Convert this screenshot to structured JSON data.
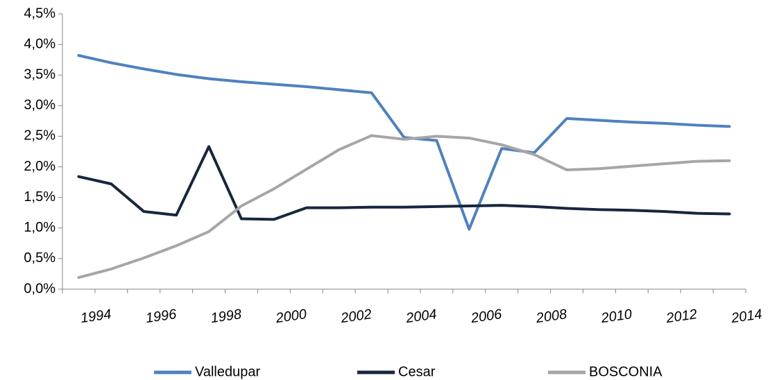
{
  "chart_data": {
    "type": "line",
    "categories": [
      "1994",
      null,
      "1996",
      null,
      "1998",
      null,
      "2000",
      null,
      "2002",
      null,
      "2004",
      null,
      "2006",
      null,
      "2008",
      null,
      "2010",
      null,
      "2012",
      null,
      "2014"
    ],
    "series": [
      {
        "name": "Valledupar",
        "color": "#4f81bd",
        "values": [
          3.82,
          3.7,
          3.6,
          3.51,
          3.44,
          3.39,
          3.35,
          3.31,
          3.26,
          3.21,
          2.48,
          2.43,
          0.98,
          2.3,
          2.23,
          2.79,
          2.76,
          2.73,
          2.71,
          2.68,
          2.66
        ]
      },
      {
        "name": "Cesar",
        "color": "#17263c",
        "values": [
          1.84,
          1.72,
          1.27,
          1.21,
          2.33,
          1.15,
          1.14,
          1.33,
          1.33,
          1.34,
          1.34,
          1.35,
          1.36,
          1.37,
          1.35,
          1.32,
          1.3,
          1.29,
          1.27,
          1.24,
          1.23
        ]
      },
      {
        "name": "BOSCONIA",
        "color": "#a6a6a6",
        "values": [
          0.19,
          0.33,
          0.51,
          0.71,
          0.94,
          1.36,
          1.64,
          1.96,
          2.28,
          2.51,
          2.45,
          2.5,
          2.47,
          2.36,
          2.2,
          1.95,
          1.97,
          2.01,
          2.05,
          2.09,
          2.1
        ]
      }
    ],
    "ylim": [
      0,
      4.5
    ],
    "yticks": [
      {
        "value": 0,
        "label": "0,0%"
      },
      {
        "value": 0.5,
        "label": "0,5%"
      },
      {
        "value": 1,
        "label": "1,0%"
      },
      {
        "value": 1.5,
        "label": "1,5%"
      },
      {
        "value": 2,
        "label": "2,0%"
      },
      {
        "value": 2.5,
        "label": "2,5%"
      },
      {
        "value": 3,
        "label": "3,0%"
      },
      {
        "value": 3.5,
        "label": "3,5%"
      },
      {
        "value": 4,
        "label": "4,0%"
      },
      {
        "value": 4.5,
        "label": "4,5%"
      }
    ],
    "grid": false,
    "legend": "bottom"
  }
}
